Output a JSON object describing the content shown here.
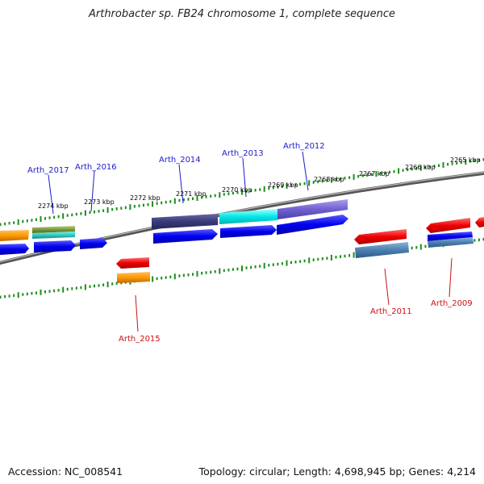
{
  "title": "Arthrobacter sp. FB24 chromosome 1, complete sequence",
  "footer": {
    "accession": "Accession: NC_008541",
    "topology": "Topology: circular; Length: 4,698,945 bp; Genes: 4,214"
  },
  "kbp_labels": [
    "2274 kbp",
    "2273 kbp",
    "2272 kbp",
    "2271 kbp",
    "2270 kbp",
    "2269 kbp",
    "2268 kbp",
    "2267 kbp",
    "2266 kbp",
    "2265 kbp"
  ],
  "gene_labels": {
    "forward": [
      "Arth_2017",
      "Arth_2016",
      "Arth_2014",
      "Arth_2013",
      "Arth_2012"
    ],
    "reverse": [
      "Arth_2015",
      "Arth_2011",
      "Arth_2009"
    ]
  },
  "colors": {
    "forward_label": "#1a1acc",
    "reverse_label": "#cc1111",
    "tick": "#1e8c1e",
    "backbone": "#777777"
  }
}
